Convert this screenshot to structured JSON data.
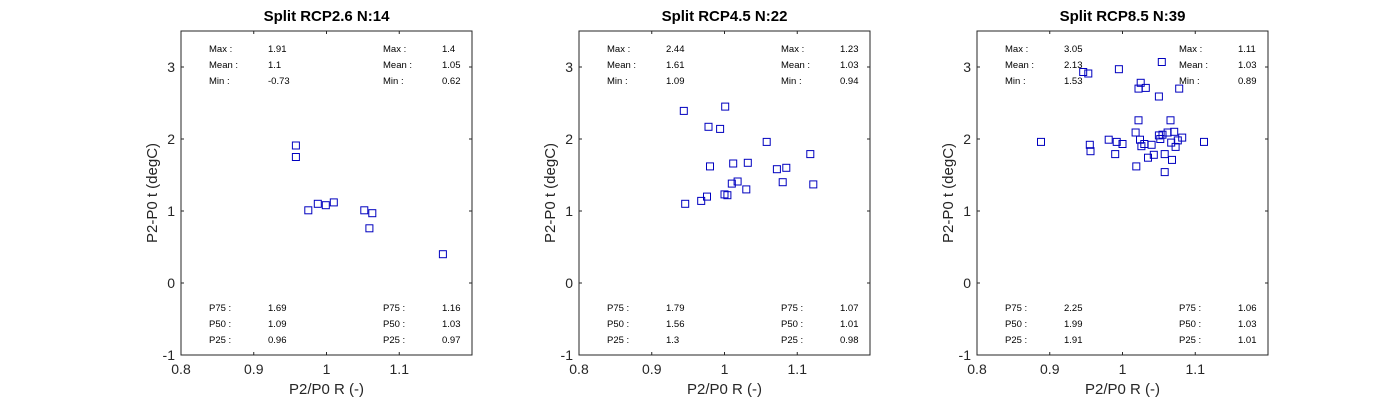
{
  "colors": {
    "marker": "#0000bf",
    "axis": "#262626",
    "background": "#ffffff"
  },
  "chart_data": [
    {
      "type": "scatter",
      "title": "Split RCP2.6 N:14",
      "xlabel": "P2/P0 R (-)",
      "ylabel": "P2-P0 t (degC)",
      "xlim": [
        0.8,
        1.2
      ],
      "ylim": [
        -1,
        3.5
      ],
      "xticks": [
        "0.8",
        "0.9",
        "1",
        "1.1"
      ],
      "yticks": [
        "-1",
        "0",
        "1",
        "2",
        "3"
      ],
      "marker": "square",
      "grid": false,
      "points": [
        [
          0.958,
          1.91
        ],
        [
          0.958,
          1.75
        ],
        [
          0.975,
          1.01
        ],
        [
          0.988,
          1.1
        ],
        [
          0.999,
          1.08
        ],
        [
          1.01,
          1.12
        ],
        [
          1.052,
          1.01
        ],
        [
          1.059,
          0.76
        ],
        [
          1.063,
          0.97
        ],
        [
          1.16,
          0.4
        ]
      ],
      "stats_t": {
        "Max": "1.91",
        "Mean": "1.1",
        "Min": "-0.73",
        "P75": "1.69",
        "P50": "1.09",
        "P25": "0.96"
      },
      "stats_r": {
        "Max": "1.4",
        "Mean": "1.05",
        "Min": "0.62",
        "P75": "1.16",
        "P50": "1.03",
        "P25": "0.97"
      }
    },
    {
      "type": "scatter",
      "title": "Split RCP4.5 N:22",
      "xlabel": "P2/P0 R (-)",
      "ylabel": "P2-P0 t (degC)",
      "xlim": [
        0.8,
        1.2
      ],
      "ylim": [
        -1,
        3.5
      ],
      "xticks": [
        "0.8",
        "0.9",
        "1",
        "1.1"
      ],
      "yticks": [
        "-1",
        "0",
        "1",
        "2",
        "3"
      ],
      "marker": "square",
      "grid": false,
      "points": [
        [
          0.944,
          2.39
        ],
        [
          0.946,
          1.1
        ],
        [
          0.968,
          1.14
        ],
        [
          0.976,
          1.2
        ],
        [
          0.978,
          2.17
        ],
        [
          0.98,
          1.62
        ],
        [
          0.994,
          2.14
        ],
        [
          1.0,
          1.23
        ],
        [
          1.001,
          2.45
        ],
        [
          1.004,
          1.22
        ],
        [
          1.01,
          1.38
        ],
        [
          1.012,
          1.66
        ],
        [
          1.018,
          1.41
        ],
        [
          1.03,
          1.3
        ],
        [
          1.032,
          1.67
        ],
        [
          1.058,
          1.96
        ],
        [
          1.072,
          1.58
        ],
        [
          1.08,
          1.4
        ],
        [
          1.085,
          1.6
        ],
        [
          1.118,
          1.79
        ],
        [
          1.122,
          1.37
        ]
      ],
      "stats_t": {
        "Max": "2.44",
        "Mean": "1.61",
        "Min": "1.09",
        "P75": "1.79",
        "P50": "1.56",
        "P25": "1.3"
      },
      "stats_r": {
        "Max": "1.23",
        "Mean": "1.03",
        "Min": "0.94",
        "P75": "1.07",
        "P50": "1.01",
        "P25": "0.98"
      }
    },
    {
      "type": "scatter",
      "title": "Split RCP8.5 N:39",
      "xlabel": "P2/P0 R (-)",
      "ylabel": "P2-P0 t (degC)",
      "xlim": [
        0.8,
        1.2
      ],
      "ylim": [
        -1,
        3.5
      ],
      "xticks": [
        "0.8",
        "0.9",
        "1",
        "1.1"
      ],
      "yticks": [
        "-1",
        "0",
        "1",
        "2",
        "3"
      ],
      "marker": "square",
      "grid": false,
      "points": [
        [
          0.888,
          1.96
        ],
        [
          0.946,
          2.93
        ],
        [
          0.953,
          2.91
        ],
        [
          0.955,
          1.92
        ],
        [
          0.956,
          1.83
        ],
        [
          0.981,
          1.99
        ],
        [
          0.99,
          1.79
        ],
        [
          0.992,
          1.96
        ],
        [
          0.995,
          2.97
        ],
        [
          1.0,
          1.93
        ],
        [
          1.018,
          2.09
        ],
        [
          1.019,
          1.62
        ],
        [
          1.022,
          2.7
        ],
        [
          1.022,
          2.26
        ],
        [
          1.024,
          1.99
        ],
        [
          1.025,
          2.78
        ],
        [
          1.026,
          1.9
        ],
        [
          1.03,
          1.93
        ],
        [
          1.032,
          2.71
        ],
        [
          1.035,
          1.74
        ],
        [
          1.04,
          1.92
        ],
        [
          1.043,
          1.78
        ],
        [
          1.05,
          2.59
        ],
        [
          1.05,
          2.05
        ],
        [
          1.052,
          2.0
        ],
        [
          1.054,
          3.07
        ],
        [
          1.055,
          2.06
        ],
        [
          1.058,
          1.54
        ],
        [
          1.058,
          1.79
        ],
        [
          1.062,
          2.09
        ],
        [
          1.066,
          2.26
        ],
        [
          1.067,
          1.95
        ],
        [
          1.068,
          1.71
        ],
        [
          1.071,
          2.1
        ],
        [
          1.073,
          1.89
        ],
        [
          1.076,
          1.98
        ],
        [
          1.078,
          2.7
        ],
        [
          1.082,
          2.02
        ],
        [
          1.112,
          1.96
        ]
      ],
      "stats_t": {
        "Max": "3.05",
        "Mean": "2.13",
        "Min": "1.53",
        "P75": "2.25",
        "P50": "1.99",
        "P25": "1.91"
      },
      "stats_r": {
        "Max": "1.11",
        "Mean": "1.03",
        "Min": "0.89",
        "P75": "1.06",
        "P50": "1.03",
        "P25": "1.01"
      }
    }
  ]
}
